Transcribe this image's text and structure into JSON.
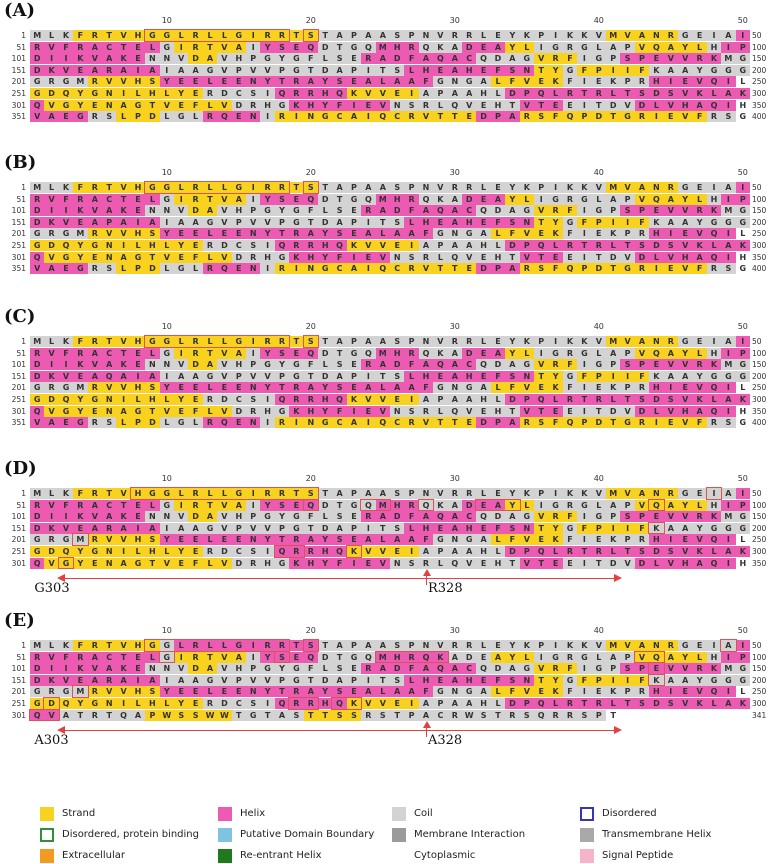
{
  "legend": [
    {
      "label": "Strand",
      "color": "#f9d21f",
      "style": "fill"
    },
    {
      "label": "Helix",
      "color": "#ec5ab2",
      "style": "fill"
    },
    {
      "label": "Coil",
      "color": "#d3d3d3",
      "style": "fill"
    },
    {
      "label": "Disordered",
      "color": "#3535b8",
      "style": "outline"
    },
    {
      "label": "Disordered, protein binding",
      "color": "#2f8f3a",
      "style": "outline"
    },
    {
      "label": "Putative Domain Boundary",
      "color": "#7ec3e0",
      "style": "fill"
    },
    {
      "label": "Membrane Interaction",
      "color": "#9a9a9a",
      "style": "fill"
    },
    {
      "label": "Transmembrane Helix",
      "color": "#a9a9a9",
      "style": "fill"
    },
    {
      "label": "Extracellular",
      "color": "#f29b22",
      "style": "fill"
    },
    {
      "label": "Re-entrant Helix",
      "color": "#1f7a1f",
      "style": "fill"
    },
    {
      "label": "Cytoplasmic",
      "color": "",
      "style": "none"
    },
    {
      "label": "Signal Peptide",
      "color": "#f7b3c8",
      "style": "fill"
    }
  ],
  "panels": [
    {
      "label": "(A)",
      "ticks": [
        "10",
        "20",
        "30",
        "40",
        "50"
      ],
      "rows": [
        {
          "start": "1",
          "end": "50",
          "seq": "MLKFRTVHGGLRLLGIRRTSTAPAASPNVRRLEYKPIKKVMVANRGEIAI",
          "ss": "CCCSSSSSSSSSSSSSSSSSCCCCCCCCCCCCCCCCCCCCSSSSSCCCCHHHH"
        },
        {
          "start": "51",
          "end": "100",
          "seq": "RVFRACTELGIRTVAIYSEQDTGQMHRQKADEAYLIGRGLAPVQAYLHIP",
          "ss": "HHHHHHHHHCSSSSSCHHHHCCCCHHHCCCHHHSSCCCCCCCSSSSSCHHH"
        },
        {
          "start": "101",
          "end": "150",
          "seq": "DIIKVAKENNVDAVHPGYGFLSERADFAQACQDAGVRFIGPSPEVVRKMG",
          "ss": "HHHHHHHHCCCSSCCCCCCCCCCHHHHHHHHCCCCSSSCCCHHHHHHHCC"
        },
        {
          "start": "151",
          "end": "200",
          "seq": "DKVEARAIAIAAGVPVVPGTDAPITSLHEAHEFSNTYGFPIIFKAAYGGG",
          "ss": "HHHHHHHHHCCCCCCCCCCCCCCCCCHHHHHHHHHSSCSSSSSCCCCCCC"
        },
        {
          "start": "201",
          "end": "250",
          "seq": "GRGMRVVHSYEELEENYTRAYSEALAAFGNGALFVEKFIEKPRHIEVQIL",
          "ss": "CCCCSSSSSHHHHHHHHHHHHHHHHHHHCCCCSSSSSCCCCCCHHHHHH"
        },
        {
          "start": "251",
          "end": "300",
          "seq": "GDQYGNILHLYERDCSIQRRHQKVVEIAPAAHLDPQLRTRLTSDSVKLAK",
          "ss": "SSSSSSSSSSSSCCCCCHHHHHSSSSSCCCCCCHHHHHHHHHHHHHHHHH"
        },
        {
          "start": "301",
          "end": "350",
          "seq": "QVGYENAGTVEFLVDRHGKHYFIEVNSRLQVEHTVTEEITDVDLVHAQIH",
          "ss": "HSSSSSSSSSSSSSCCCCHHHHHHHCCCCCCCCCHHHCCCCCHHHHHHH"
        },
        {
          "start": "351",
          "end": "400",
          "seq": "VAEGRSLPDLGLRQENIRINGCAIQCRVTTEDPARSFQPDTGRIEVFRSG",
          "ss": "HHHHCCSSSCCCHHHHCSSSSSSSSSSSSSSHHHSSSSSSSSSSSSSCC"
        }
      ],
      "arrow": null
    },
    {
      "label": "(B)",
      "ticks": [
        "10",
        "20",
        "30",
        "40",
        "50"
      ],
      "rows": [
        {
          "start": "1",
          "end": "50",
          "seq": "MLKFRTVHGGLRLLGIRRTSTAPAASPNVRRLEYKPIKKVMVANRGEIAI",
          "ss": "CCCSSSSSSSSSSSSSSSSSCCCCCCCCCCCCCCCCCCCCSSSSSCCCCHHHH"
        },
        {
          "start": "51",
          "end": "100",
          "seq": "RVFRACTELGIRTVAIYSEQDTGQMHRQKADEAYLIGRGLAPVQAYLHIP",
          "ss": "HHHHHHHHHCSSSSSCHHHHCCCCHHHCCCHHHSSCCCCCCCSSSSSCHHH"
        },
        {
          "start": "101",
          "end": "150",
          "seq": "DIIKVAKENNVDAVHPGYGFLSERADFAQACQDAGVRFIGPSPEVVRKMG",
          "ss": "HHHHHHHHCCCSSCCCCCCCCCCHHHHHHHHCCCCSSSCCCHHHHHHHCC"
        },
        {
          "start": "151",
          "end": "200",
          "seq": "DKVEAPAIAIAAGVPVVPGTDAPITSLHEAHEFSNTYGFPIIFKAAYGGG",
          "ss": "HHHHHHHHHCCCCCCCCCCCCCCCCCHHHHHHHHHSSCSSSSSCCCCCCC"
        },
        {
          "start": "201",
          "end": "250",
          "seq": "GRGMRVVHSYEELEENYTRAYSEALAAFGNGALFVEKFIEKPRHIEVQIL",
          "ss": "CCCCSSSSSHHHHHHHHHHHHHHHHHHHCCCCSSSSSCCCCCCHHHHHH"
        },
        {
          "start": "251",
          "end": "300",
          "seq": "GDQYGNILHLYERDCSIQRRHQKVVEIAPAAHLDPQLRTRLTSDSVKLAK",
          "ss": "SSSSSSSSSSSSCCCCCHHHHHSSSSSCCCCCCHHHHHHHHHHHHHHHHH"
        },
        {
          "start": "301",
          "end": "350",
          "seq": "QVGYENAGTVEFLVDRHGKHYFIEVNSRLQVEHTVTEEITDVDLVHAQIH",
          "ss": "HSSSSSSSSSSSSSCCCCHHHHHHHCCCCCCCCCHHHCCCCCHHHHHHH"
        },
        {
          "start": "351",
          "end": "400",
          "seq": "VAEGRSLPDLGLRQENIRINGCAIQCRVTTEDPARSFQPDTGRIEVFRSG",
          "ss": "HHHHCCSSSCCCHHHHCSSSSSSSSSSSSSSHHHSSSSSSSSSSSSSCC"
        }
      ],
      "arrow": null
    },
    {
      "label": "(C)",
      "ticks": [
        "10",
        "20",
        "30",
        "40",
        "50"
      ],
      "rows": [
        {
          "start": "1",
          "end": "50",
          "seq": "MLKFRTVHGGLRLLGIRRTSTAPAASPNVRRLEYKPIKKVMVANRGEIAI",
          "ss": "CCCSSSSSSSSSSSSSSSSSCCCCCCCCCCCCCCCCCCCCSSSSSCCCCHHHH"
        },
        {
          "start": "51",
          "end": "100",
          "seq": "RVFRACTELGIRTVAIYSEQDTGQMHRQKADEAYLIGRGLAPVQAYLHIP",
          "ss": "HHHHHHHHHCSSSSSCHHHHCCCCHHHCCCHHHSSCCCCCCCSSSSSCHHH"
        },
        {
          "start": "101",
          "end": "150",
          "seq": "DIIKVAKENNVDAVHPGYGFLSERADFAQACQDAGVRFIGPSPEVVRKMG",
          "ss": "HHHHHHHHCCCSSCCCCCCCCCCHHHHHHHHCCCCSSSCCCHHHHHHHCC"
        },
        {
          "start": "151",
          "end": "200",
          "seq": "DKVEAQAIAIAAGVPVVPGTDAPITSLHEAHEFSNTYGFPIIFKAAYGGG",
          "ss": "HHHHHHHHHCCCCCCCCCCCCCCCCCHHHHHHHHHSSCSSSSSCCCCCCC"
        },
        {
          "start": "201",
          "end": "250",
          "seq": "GRGMRVVHSYEELEENYTRAYSEALAAFGNGALFVEKFIEKPRHIEVQIL",
          "ss": "CCCCSSSSSHHHHHHHHHHHHHHHHHHHCCCCSSSSSCCCCCCHHHHHH"
        },
        {
          "start": "251",
          "end": "300",
          "seq": "GDQYGNILHLYERDCSIQRRHQKVVEIAPAAHLDPQLRTRLTSDSVKLAK",
          "ss": "SSSSSSSSSSSSCCCCCHHHHHSSSSSCCCCCCHHHHHHHHHHHHHHHHH"
        },
        {
          "start": "301",
          "end": "350",
          "seq": "QVGYENAGTVEFLVDRHGKHYFIEVNSRLQVEHTVTEEITDVDLVHAQIH",
          "ss": "HSSSSSSSSSSSSSCCCCHHHHHHHCCCCCCCCCHHHCCCCCHHHHHHH"
        },
        {
          "start": "351",
          "end": "400",
          "seq": "VAEGRSLPDLGLRQENIRINGCAIQCRVTTEDPARSFQPDTGRIEVFRSG",
          "ss": "HHHHCCSSSCCCHHHHCSSSSSSSSSSSSSSHHHSSSSSSSSSSSSSCC"
        }
      ],
      "arrow": null
    },
    {
      "label": "(D)",
      "ticks": [
        "10",
        "20",
        "30",
        "40",
        "50"
      ],
      "rows": [
        {
          "start": "1",
          "end": "50",
          "seq": "MLKFRTVHGGLRLLGIRRTSTAPAASPNVRRLEYKPIKKVMVANRGEIAI",
          "ss": "CCCSSSSSSSSSSSSSSSSSCCCCCCCCCCCCCCCCCCCCSSSSSCCCCHHHH"
        },
        {
          "start": "51",
          "end": "100",
          "seq": "RVFRACTELGIRTVAIYSEQDTGQMHRQKADEAYLIGRGLAPVQAYLHIP",
          "ss": "HHHHHHHHHCSSSSSCHHHHCCCCHHHCCCHHHSSCCCCCCCSSSSSCHHH"
        },
        {
          "start": "101",
          "end": "150",
          "seq": "DIIKVAKENNVDAVHPGYGFLSERADFAQACQDAGVRFIGPSPEVVRKMG",
          "ss": "HHHHHHHHCCCSSCCCCCCCCCCHHHHHHHHCCCCSSSCCCHHHHHHHCC"
        },
        {
          "start": "151",
          "end": "200",
          "seq": "DKVEARAIAIAAGVPVVPGTDAPITSLHEAHEFSNTYGFPIIFKAAYGGG",
          "ss": "HHHHHHHHHCCCCCCCCCCCCCCCCCHHHHHHHHHSSCSSSSSCCCCCCC"
        },
        {
          "start": "201",
          "end": "250",
          "seq": "GRGMRVVHSYEELEENYTRAYSEALAAFGNGALFVEKFIEKPRHIEVQIL",
          "ss": "CCCCSSSSSHHHHHHHHHHHHHHHHHHHCCCCSSSSSCCCCCCHHHHHH"
        },
        {
          "start": "251",
          "end": "300",
          "seq": "GDQYGNILHLYERDCSIQRRHQKVVEIAPAAHLDPQLRTRLTSDSVKLAK",
          "ss": "SSSSSSSSSSSSCCCCCHHHHHSSSSSCCCCCCHHHHHHHHHHHHHHHHH"
        },
        {
          "start": "301",
          "end": "350",
          "seq": "QVGYENAGTVEFLVDRHGKHYFIEVNSRLQVEHTVTEEITDVDLVHAQIH",
          "ss": "HSSSSSSSSSSSSSCCCCHHHHHHHCCCCCCCCCHHHCCCCCHHHHHHH"
        }
      ],
      "arrow": {
        "left_label": "G303",
        "right_label": "R328"
      }
    },
    {
      "label": "(E)",
      "ticks": [
        "10",
        "20",
        "30",
        "40",
        "50"
      ],
      "rows": [
        {
          "start": "1",
          "end": "50",
          "seq": "MLKFRTVHGGLRLLGIRRTSTAPAASPNVRRLEYKPIKKVMVANRGEIAI",
          "ss": "CCCSSSSSSCHHHHHHHHHHCCCCCCCCCCCCCCCCCCCCSSSSSCCCCHHHH"
        },
        {
          "start": "51",
          "end": "100",
          "seq": "RVFRACTELGIRTVAIYSEQDTGQMHRQKADEAYLIGRGLAPVQAYLHIP",
          "ss": "HHHHHHHHHCSSSSSCHHHHCCCCHHHHHCCCSSSCCCCCCCSSSSSCHHH"
        },
        {
          "start": "101",
          "end": "150",
          "seq": "DIIKVAKENNVDAVHPGYGFLSERADFAQACQDAGVRFIGPSPEVVRKMG",
          "ss": "HHHHHHHHCCCSSCCCCCCCCCCHHHHHHHHCCCCSSSCCCHHHHHHHCC"
        },
        {
          "start": "151",
          "end": "200",
          "seq": "DKVEARAIAIAAGVPVVPGTDAPITSLHEAHEFSNTYGFPIIFKAAYGGG",
          "ss": "HHHHHHHHHCCCCCCCCCCCCCCCCCHHHHHHHHHSSCSSSSSCCCCCCC"
        },
        {
          "start": "201",
          "end": "250",
          "seq": "GRGMRVVHSYEELEENYTRAYSEALAAFGNGALFVEKFIEKPRHIEVQIL",
          "ss": "CCCCSSSSSHHHHHHHHHHHHHHHHHHHCCCCSSSSSCCCCCCHHHHHH"
        },
        {
          "start": "251",
          "end": "300",
          "seq": "GDQYGNILHLYERDCSIQRRHQKVVEIAPAAHLDPQLRTRLTSDSVKLAK",
          "ss": "SSSSSSSSSSSSCCCCCHHHHHSSSSSCCCCCCHHHHHHHHHHHHHHHHH"
        },
        {
          "start": "301",
          "end": "341",
          "seq": "QVATRTQAPWSSWWTGTASTTSSRSTPACRWSTRSQRRSPT",
          "ss": "HHCCCCCCSSSSSSCCCCCSSSSCCCCCCCCCCCCCCCCC"
        }
      ],
      "arrow": {
        "left_label": "A303",
        "right_label": "A328"
      }
    }
  ]
}
